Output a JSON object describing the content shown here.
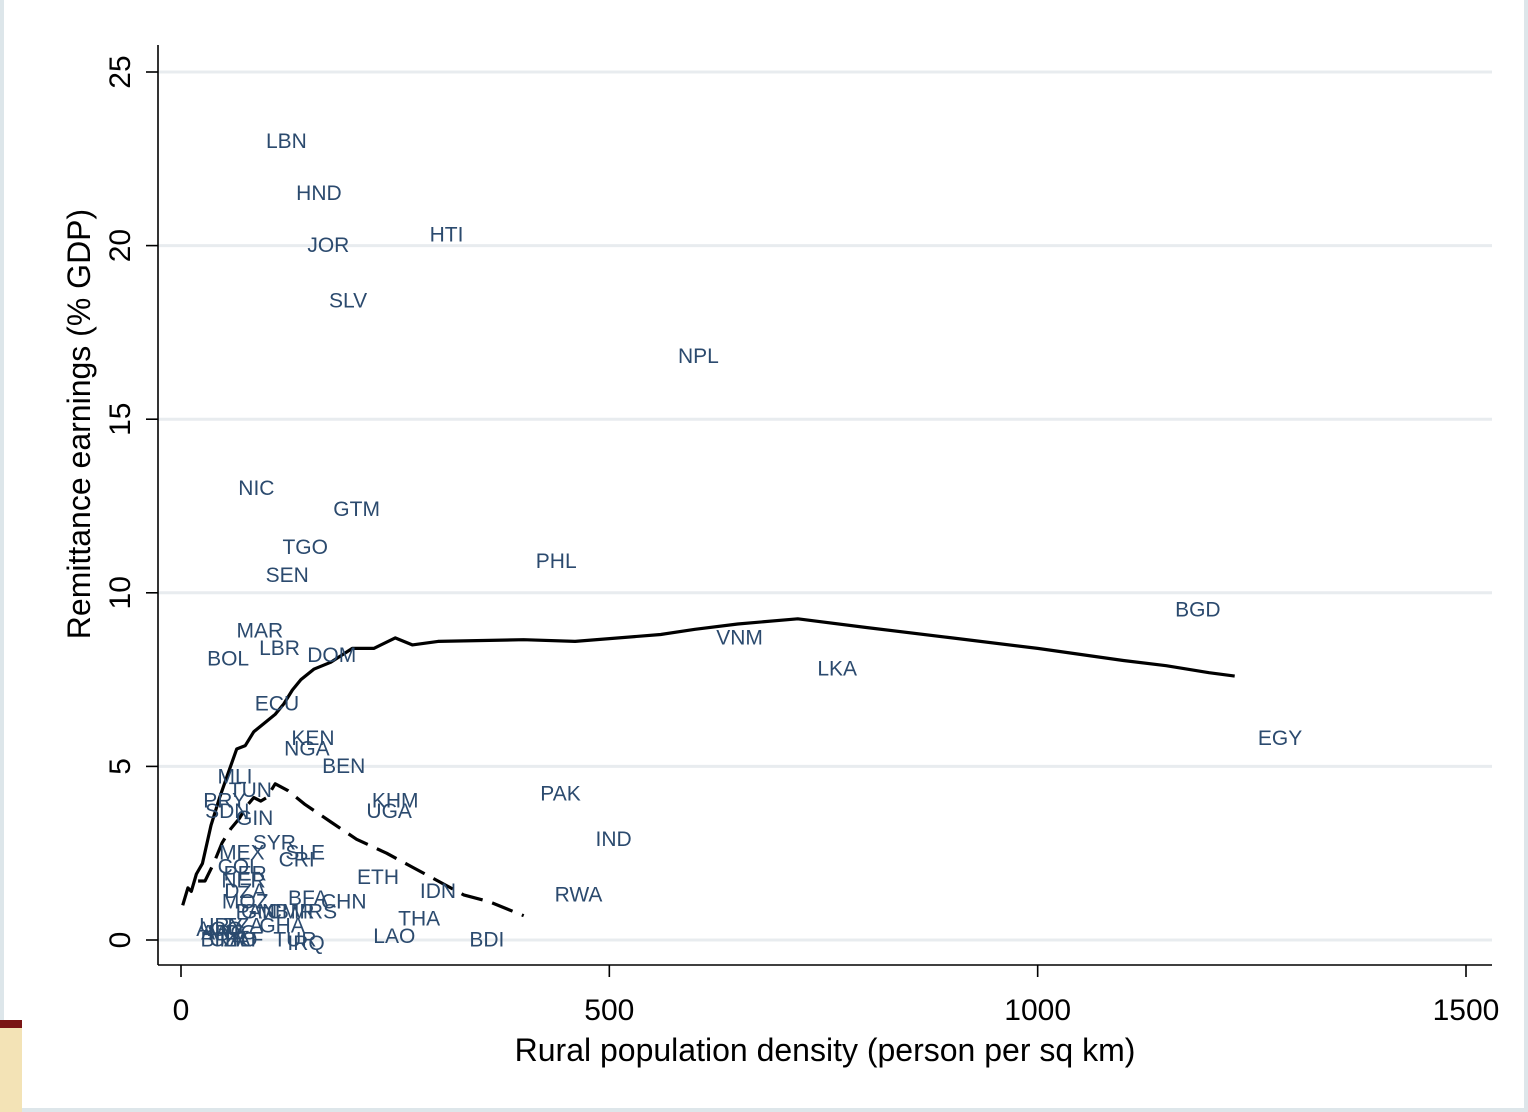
{
  "chart_data": {
    "type": "scatter",
    "title": "",
    "xlabel": "Rural population density (person per sq km)",
    "ylabel": "Remittance earnings (% GDP)",
    "xlim": [
      0,
      1500
    ],
    "ylim": [
      0,
      25
    ],
    "xticks": [
      0,
      500,
      1000,
      1500
    ],
    "yticks": [
      0,
      5,
      10,
      15,
      20,
      25
    ],
    "grid": "horizontal",
    "colors": {
      "label": "#2b4a6e",
      "line": "#000000",
      "grid": "#e8ecef",
      "border": "#dde6ea"
    },
    "points": [
      {
        "label": "LBN",
        "x": 123,
        "y": 23.0
      },
      {
        "label": "HND",
        "x": 161,
        "y": 21.5
      },
      {
        "label": "JOR",
        "x": 172,
        "y": 20.0
      },
      {
        "label": "HTI",
        "x": 310,
        "y": 20.3
      },
      {
        "label": "SLV",
        "x": 195,
        "y": 18.4
      },
      {
        "label": "NPL",
        "x": 604,
        "y": 16.8
      },
      {
        "label": "NIC",
        "x": 88,
        "y": 13.0
      },
      {
        "label": "GTM",
        "x": 205,
        "y": 12.4
      },
      {
        "label": "TGO",
        "x": 145,
        "y": 11.3
      },
      {
        "label": "SEN",
        "x": 124,
        "y": 10.5
      },
      {
        "label": "PHL",
        "x": 438,
        "y": 10.9
      },
      {
        "label": "BGD",
        "x": 1187,
        "y": 9.5
      },
      {
        "label": "MAR",
        "x": 92,
        "y": 8.9
      },
      {
        "label": "LBR",
        "x": 115,
        "y": 8.4
      },
      {
        "label": "DOM",
        "x": 176,
        "y": 8.2
      },
      {
        "label": "BOL",
        "x": 55,
        "y": 8.1
      },
      {
        "label": "VNM",
        "x": 652,
        "y": 8.7
      },
      {
        "label": "LKA",
        "x": 766,
        "y": 7.8
      },
      {
        "label": "ECU",
        "x": 112,
        "y": 6.8
      },
      {
        "label": "EGY",
        "x": 1283,
        "y": 5.8
      },
      {
        "label": "KEN",
        "x": 154,
        "y": 5.8
      },
      {
        "label": "NGA",
        "x": 147,
        "y": 5.5
      },
      {
        "label": "BEN",
        "x": 190,
        "y": 5.0
      },
      {
        "label": "MLI",
        "x": 63,
        "y": 4.7
      },
      {
        "label": "TUN",
        "x": 81,
        "y": 4.3
      },
      {
        "label": "PAK",
        "x": 443,
        "y": 4.2
      },
      {
        "label": "KHM",
        "x": 250,
        "y": 4.0
      },
      {
        "label": "UGA",
        "x": 243,
        "y": 3.7
      },
      {
        "label": "PRY",
        "x": 51,
        "y": 4.0
      },
      {
        "label": "SDN",
        "x": 54,
        "y": 3.7
      },
      {
        "label": "GIN",
        "x": 86,
        "y": 3.5
      },
      {
        "label": "IND",
        "x": 505,
        "y": 2.9
      },
      {
        "label": "SYR",
        "x": 109,
        "y": 2.8
      },
      {
        "label": "MEX",
        "x": 71,
        "y": 2.5
      },
      {
        "label": "SLE",
        "x": 145,
        "y": 2.5
      },
      {
        "label": "CRI",
        "x": 135,
        "y": 2.3
      },
      {
        "label": "COL",
        "x": 68,
        "y": 2.1
      },
      {
        "label": "PER",
        "x": 75,
        "y": 1.9
      },
      {
        "label": "NER",
        "x": 73,
        "y": 1.7
      },
      {
        "label": "ETH",
        "x": 230,
        "y": 1.8
      },
      {
        "label": "IDN",
        "x": 300,
        "y": 1.4
      },
      {
        "label": "RWA",
        "x": 464,
        "y": 1.3
      },
      {
        "label": "DZA",
        "x": 75,
        "y": 1.4
      },
      {
        "label": "BFA",
        "x": 148,
        "y": 1.2
      },
      {
        "label": "MOZ",
        "x": 75,
        "y": 1.1
      },
      {
        "label": "CHN",
        "x": 190,
        "y": 1.1
      },
      {
        "label": "PAN",
        "x": 88,
        "y": 0.8
      },
      {
        "label": "GMB",
        "x": 98,
        "y": 0.8
      },
      {
        "label": "CMR",
        "x": 128,
        "y": 0.8
      },
      {
        "label": "MRS",
        "x": 155,
        "y": 0.8
      },
      {
        "label": "THA",
        "x": 278,
        "y": 0.6
      },
      {
        "label": "URY",
        "x": 47,
        "y": 0.4
      },
      {
        "label": "TZA",
        "x": 73,
        "y": 0.4
      },
      {
        "label": "GHA",
        "x": 118,
        "y": 0.4
      },
      {
        "label": "AGO",
        "x": 45,
        "y": 0.3
      },
      {
        "label": "ARG",
        "x": 50,
        "y": 0.2
      },
      {
        "label": "MDG",
        "x": 60,
        "y": 0.2
      },
      {
        "label": "LAO",
        "x": 249,
        "y": 0.1
      },
      {
        "label": "BRA",
        "x": 48,
        "y": 0.0
      },
      {
        "label": "CHL",
        "x": 58,
        "y": 0.0
      },
      {
        "label": "TTO",
        "x": 65,
        "y": 0.0
      },
      {
        "label": "ZAF",
        "x": 73,
        "y": 0.0
      },
      {
        "label": "TUR",
        "x": 133,
        "y": 0.0
      },
      {
        "label": "IRQ",
        "x": 146,
        "y": -0.1
      },
      {
        "label": "BDI",
        "x": 357,
        "y": 0.0
      }
    ],
    "series": [
      {
        "style": "solid",
        "x": [
          2,
          8,
          12,
          18,
          25,
          35,
          45,
          55,
          65,
          75,
          85,
          100,
          110,
          120,
          130,
          140,
          155,
          175,
          200,
          225,
          250,
          270,
          300,
          400,
          460,
          560,
          600,
          650,
          720,
          800,
          900,
          1000,
          1100,
          1150,
          1200,
          1230
        ],
        "y": [
          1.0,
          1.5,
          1.4,
          1.9,
          2.2,
          3.3,
          4.1,
          4.8,
          5.5,
          5.6,
          6.0,
          6.3,
          6.5,
          6.8,
          7.2,
          7.5,
          7.8,
          8.0,
          8.4,
          8.4,
          8.7,
          8.5,
          8.6,
          8.65,
          8.6,
          8.8,
          8.95,
          9.1,
          9.25,
          9.0,
          8.7,
          8.4,
          8.05,
          7.9,
          7.7,
          7.6
        ]
      },
      {
        "style": "dashed",
        "x": [
          20,
          28,
          38,
          48,
          58,
          68,
          78,
          85,
          93,
          100,
          110,
          125,
          145,
          175,
          205,
          240,
          270,
          300,
          330,
          360,
          400
        ],
        "y": [
          1.7,
          1.7,
          2.2,
          2.8,
          3.2,
          3.5,
          3.9,
          4.1,
          4.0,
          4.1,
          4.5,
          4.3,
          3.9,
          3.4,
          2.9,
          2.5,
          2.1,
          1.7,
          1.3,
          1.1,
          0.7
        ]
      }
    ]
  }
}
